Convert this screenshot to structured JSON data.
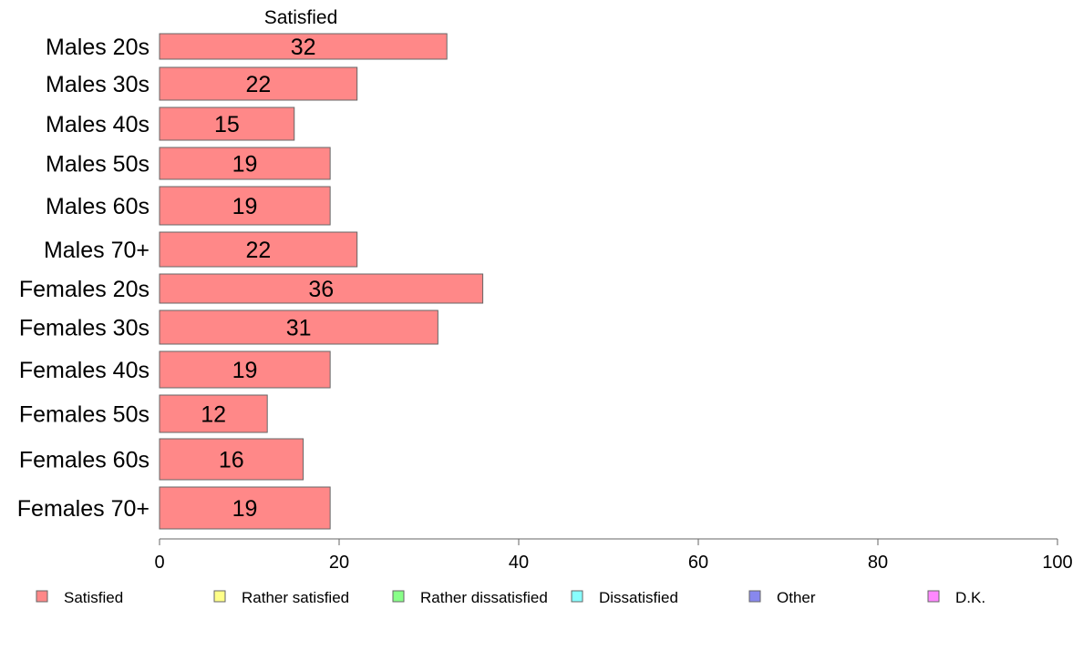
{
  "chart_data": {
    "type": "bar",
    "orientation": "horizontal",
    "title": "Satisfied",
    "categories": [
      "Males 20s",
      "Males 30s",
      "Males 40s",
      "Males 50s",
      "Males 60s",
      "Males 70+",
      "Females 20s",
      "Females 30s",
      "Females 40s",
      "Females 50s",
      "Females 60s",
      "Females 70+"
    ],
    "series": [
      {
        "name": "Satisfied",
        "color": "#ff8888",
        "values": [
          32,
          22,
          15,
          19,
          19,
          22,
          36,
          31,
          19,
          12,
          16,
          19
        ]
      }
    ],
    "data_labels": [
      "32",
      "22",
      "15",
      "19",
      "19",
      "22",
      "36",
      "31",
      "19",
      "12",
      "16",
      "19"
    ],
    "xlim": [
      0,
      100
    ],
    "x_ticks": [
      0,
      20,
      40,
      60,
      80,
      100
    ],
    "x_tick_labels": [
      "0",
      "20",
      "40",
      "60",
      "80",
      "100"
    ],
    "grid": false,
    "legend_position": "bottom",
    "legend": [
      {
        "label": "Satisfied",
        "color": "#ff8888"
      },
      {
        "label": "Rather satisfied",
        "color": "#ffff88"
      },
      {
        "label": "Rather dissatisfied",
        "color": "#88ff88"
      },
      {
        "label": "Dissatisfied",
        "color": "#88ffff"
      },
      {
        "label": "Other",
        "color": "#8888ee"
      },
      {
        "label": "D.K.",
        "color": "#ff88ff"
      }
    ]
  }
}
